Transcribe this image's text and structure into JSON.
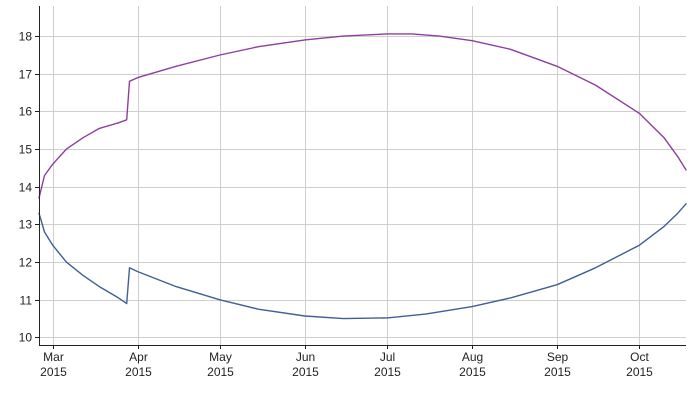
{
  "chart_data": {
    "type": "line",
    "title": "",
    "xlabel": "",
    "ylabel": "",
    "x_range": [
      "2015-02-24",
      "2015-10-18"
    ],
    "ylim": [
      9.8,
      18.8
    ],
    "y_ticks": [
      10,
      11,
      12,
      13,
      14,
      15,
      16,
      17,
      18
    ],
    "x_ticks": [
      {
        "date": "2015-03-01",
        "month": "Mar",
        "year": "2015"
      },
      {
        "date": "2015-04-01",
        "month": "Apr",
        "year": "2015"
      },
      {
        "date": "2015-05-01",
        "month": "May",
        "year": "2015"
      },
      {
        "date": "2015-06-01",
        "month": "Jun",
        "year": "2015"
      },
      {
        "date": "2015-07-01",
        "month": "Jul",
        "year": "2015"
      },
      {
        "date": "2015-08-01",
        "month": "Aug",
        "year": "2015"
      },
      {
        "date": "2015-09-01",
        "month": "Sep",
        "year": "2015"
      },
      {
        "date": "2015-10-01",
        "month": "Oct",
        "year": "2015"
      }
    ],
    "grid": true,
    "legend": "none",
    "series": [
      {
        "color": "#8e3f9e",
        "points": [
          [
            "2015-02-24",
            13.7
          ],
          [
            "2015-02-26",
            14.3
          ],
          [
            "2015-03-01",
            14.6
          ],
          [
            "2015-03-06",
            15.0
          ],
          [
            "2015-03-12",
            15.3
          ],
          [
            "2015-03-18",
            15.55
          ],
          [
            "2015-03-25",
            15.7
          ],
          [
            "2015-03-28",
            15.78
          ],
          [
            "2015-03-29",
            16.8
          ],
          [
            "2015-04-01",
            16.9
          ],
          [
            "2015-04-15",
            17.2
          ],
          [
            "2015-05-01",
            17.5
          ],
          [
            "2015-05-15",
            17.72
          ],
          [
            "2015-06-01",
            17.9
          ],
          [
            "2015-06-15",
            18.0
          ],
          [
            "2015-07-01",
            18.06
          ],
          [
            "2015-07-10",
            18.06
          ],
          [
            "2015-07-20",
            18.0
          ],
          [
            "2015-08-01",
            17.88
          ],
          [
            "2015-08-15",
            17.65
          ],
          [
            "2015-09-01",
            17.2
          ],
          [
            "2015-09-15",
            16.7
          ],
          [
            "2015-10-01",
            15.95
          ],
          [
            "2015-10-10",
            15.3
          ],
          [
            "2015-10-15",
            14.8
          ],
          [
            "2015-10-18",
            14.45
          ]
        ]
      },
      {
        "color": "#3f6096",
        "points": [
          [
            "2015-02-24",
            13.3
          ],
          [
            "2015-02-26",
            12.8
          ],
          [
            "2015-03-01",
            12.45
          ],
          [
            "2015-03-06",
            12.0
          ],
          [
            "2015-03-12",
            11.65
          ],
          [
            "2015-03-18",
            11.35
          ],
          [
            "2015-03-25",
            11.05
          ],
          [
            "2015-03-28",
            10.9
          ],
          [
            "2015-03-29",
            11.85
          ],
          [
            "2015-04-01",
            11.75
          ],
          [
            "2015-04-15",
            11.35
          ],
          [
            "2015-05-01",
            11.0
          ],
          [
            "2015-05-15",
            10.75
          ],
          [
            "2015-06-01",
            10.57
          ],
          [
            "2015-06-15",
            10.5
          ],
          [
            "2015-07-01",
            10.52
          ],
          [
            "2015-07-15",
            10.62
          ],
          [
            "2015-08-01",
            10.82
          ],
          [
            "2015-08-15",
            11.05
          ],
          [
            "2015-09-01",
            11.4
          ],
          [
            "2015-09-15",
            11.85
          ],
          [
            "2015-10-01",
            12.45
          ],
          [
            "2015-10-10",
            12.95
          ],
          [
            "2015-10-15",
            13.3
          ],
          [
            "2015-10-18",
            13.55
          ]
        ]
      }
    ]
  }
}
